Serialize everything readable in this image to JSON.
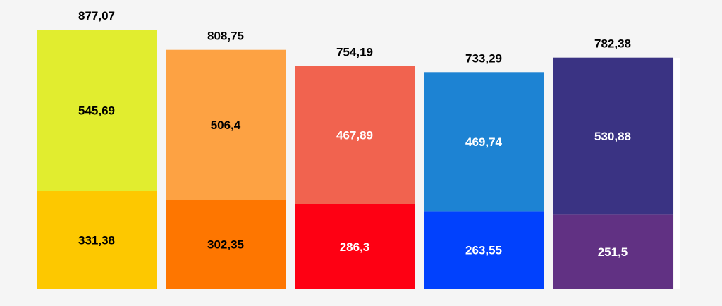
{
  "chart_data": {
    "type": "bar",
    "stacked": true,
    "categories": [
      "",
      "",
      "",
      "",
      ""
    ],
    "series": [
      {
        "values": [
          331.38,
          302.35,
          286.3,
          263.55,
          251.5
        ],
        "labels": [
          "331,38",
          "302,35",
          "286,3",
          "263,55",
          "251,5"
        ],
        "colors": [
          "#fdc800",
          "#fe7600",
          "#fe0013",
          "#0141fd",
          "#613183"
        ],
        "label_colors": [
          "#000000",
          "#000000",
          "#ffffff",
          "#ffffff",
          "#ffffff"
        ]
      },
      {
        "values": [
          545.69,
          506.4,
          467.89,
          469.74,
          530.88
        ],
        "labels": [
          "545,69",
          "506,4",
          "467,89",
          "469,74",
          "530,88"
        ],
        "colors": [
          "#e1ed2f",
          "#fda243",
          "#f1634f",
          "#1d83d3",
          "#3a3383"
        ],
        "label_colors": [
          "#000000",
          "#000000",
          "#ffffff",
          "#ffffff",
          "#ffffff"
        ]
      }
    ],
    "totals": [
      877.07,
      808.75,
      754.19,
      733.29,
      782.38
    ],
    "total_labels": [
      "877,07",
      "808,75",
      "754,19",
      "733,29",
      "782,38"
    ],
    "ylim": [
      0,
      877.07
    ],
    "grid": false,
    "legend": "none"
  }
}
